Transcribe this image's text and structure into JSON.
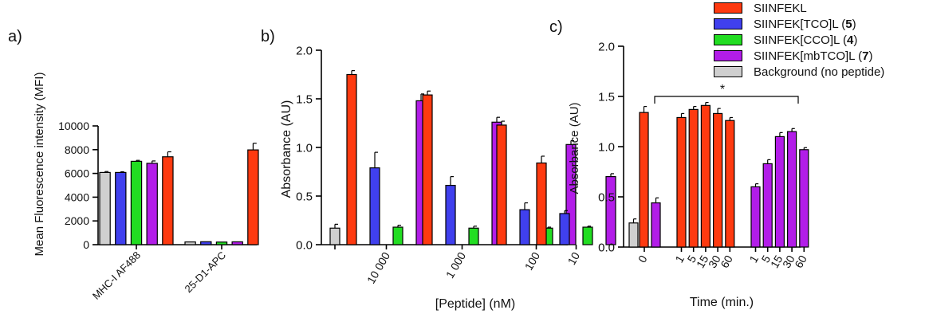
{
  "colors": {
    "red": "#fe3a10",
    "blue": "#4040ee",
    "green": "#22dd22",
    "purple": "#b21de8",
    "gray": "#cfcfcf"
  },
  "legend": [
    {
      "text": "SIINFEKL",
      "num": "",
      "suffix": "",
      "color": "#fe3a10"
    },
    {
      "text": "SIINFEK[TCO]L (",
      "num": "5",
      "suffix": ")",
      "color": "#4040ee"
    },
    {
      "text": "SIINFEK[CCO]L (",
      "num": "4",
      "suffix": ")",
      "color": "#22dd22"
    },
    {
      "text": "SIINFEK[mbTCO]L (",
      "num": "7",
      "suffix": ")",
      "color": "#b21de8"
    },
    {
      "text": "Background (no peptide)",
      "num": "",
      "suffix": "",
      "color": "#cfcfcf"
    }
  ],
  "chart_data": [
    {
      "panel": "a)",
      "type": "bar",
      "ylabel": "Mean Fluorescence intensity (MFI)",
      "ylim": [
        0,
        10000
      ],
      "yticks": [
        "0",
        "2000",
        "4000",
        "6000",
        "8000",
        "10000"
      ],
      "categories": [
        "MHC-I AF488",
        "25-D1-APC"
      ],
      "series": [
        {
          "name": "Background (no peptide)",
          "color": "gray",
          "values": [
            6080,
            230
          ],
          "errors": [
            80,
            0
          ]
        },
        {
          "name": "SIINFEK[TCO]L (5)",
          "color": "blue",
          "values": [
            6080,
            250
          ],
          "errors": [
            60,
            0
          ]
        },
        {
          "name": "SIINFEK[CCO]L (4)",
          "color": "green",
          "values": [
            7020,
            220
          ],
          "errors": [
            80,
            0
          ]
        },
        {
          "name": "SIINFEK[mbTCO]L (7)",
          "color": "purple",
          "values": [
            6850,
            240
          ],
          "errors": [
            200,
            0
          ]
        },
        {
          "name": "SIINFEKL",
          "color": "red",
          "values": [
            7400,
            7980
          ],
          "errors": [
            420,
            560
          ]
        }
      ]
    },
    {
      "panel": "b)",
      "type": "bar",
      "ylabel": "Absorbance (AU)",
      "xlabel": "[Peptide] (nM)",
      "ylim": [
        0.0,
        2.0
      ],
      "yticks": [
        "0.0",
        "0.5",
        "1.0",
        "1.5",
        "2.0"
      ],
      "background": {
        "value": 0.17,
        "error": 0.04
      },
      "categories": [
        "10 000",
        "1 000",
        "100",
        "10"
      ],
      "series": [
        {
          "name": "SIINFEKL",
          "color": "red",
          "values": [
            1.75,
            1.54,
            1.23,
            0.84
          ],
          "errors": [
            0.04,
            0.04,
            0.04,
            0.07
          ]
        },
        {
          "name": "SIINFEK[TCO]L (5)",
          "color": "blue",
          "values": [
            0.79,
            0.61,
            0.36,
            0.32
          ],
          "errors": [
            0.16,
            0.09,
            0.07,
            0.03
          ]
        },
        {
          "name": "SIINFEK[CCO]L (4)",
          "color": "green",
          "values": [
            0.18,
            0.17,
            0.17,
            0.18
          ],
          "errors": [
            0.02,
            0.02,
            0.01,
            0.01
          ]
        },
        {
          "name": "SIINFEK[mbTCO]L (7)",
          "color": "purple",
          "values": [
            1.48,
            1.26,
            1.03,
            0.7
          ],
          "errors": [
            0.07,
            0.05,
            0.04,
            0.03
          ]
        }
      ]
    },
    {
      "panel": "c)",
      "type": "bar",
      "ylabel": "Absorbance (AU)",
      "xlabel": "Time (min.)",
      "ylim": [
        0.0,
        2.0
      ],
      "yticks": [
        "0.0",
        "0.5",
        "1.0",
        "1.5",
        "2.0"
      ],
      "annotation": "*",
      "controls": [
        {
          "color": "gray",
          "value": 0.24,
          "error": 0.04,
          "label": ""
        },
        {
          "color": "red",
          "value": 1.34,
          "error": 0.06,
          "label": ""
        },
        {
          "color": "purple",
          "value": 0.44,
          "error": 0.05,
          "label": "0"
        }
      ],
      "series": [
        {
          "name": "SIINFEKL",
          "color": "red",
          "x": [
            "1",
            "5",
            "15",
            "30",
            "60"
          ],
          "values": [
            1.29,
            1.37,
            1.41,
            1.33,
            1.26
          ],
          "errors": [
            0.04,
            0.03,
            0.03,
            0.05,
            0.03
          ]
        },
        {
          "name": "SIINFEK[mbTCO]L (7)",
          "color": "purple",
          "x": [
            "1",
            "5",
            "15",
            "30",
            "60"
          ],
          "values": [
            0.6,
            0.83,
            1.1,
            1.15,
            0.97
          ],
          "errors": [
            0.03,
            0.04,
            0.04,
            0.03,
            0.02
          ]
        }
      ]
    }
  ]
}
